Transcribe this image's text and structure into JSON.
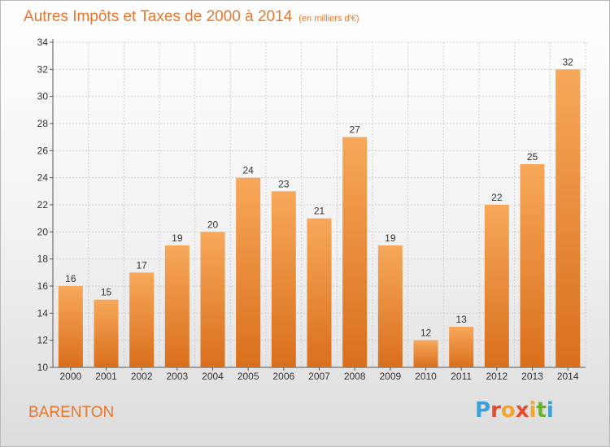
{
  "chart_data": {
    "type": "bar",
    "title": "Autres Impôts et Taxes de 2000 à 2014",
    "unit_note": "(en milliers d'€)",
    "categories": [
      "2000",
      "2001",
      "2002",
      "2003",
      "2004",
      "2005",
      "2006",
      "2007",
      "2008",
      "2009",
      "2010",
      "2011",
      "2012",
      "2013",
      "2014"
    ],
    "values": [
      16,
      15,
      17,
      19,
      20,
      24,
      23,
      21,
      27,
      19,
      12,
      13,
      22,
      25,
      32
    ],
    "ylim": [
      10,
      34
    ],
    "yticks": [
      10,
      12,
      14,
      16,
      18,
      20,
      22,
      24,
      26,
      28,
      30,
      32,
      34
    ],
    "xlabel": "",
    "ylabel": "",
    "grid": true,
    "bar_color_top": "#f7a85a",
    "bar_color_bottom": "#d96f1c"
  },
  "commune": "BARENTON",
  "logo": {
    "letters": [
      "P",
      "r",
      "o",
      "x",
      "i",
      "t",
      "i"
    ],
    "colors": [
      "#3aa0d8",
      "#e9492b",
      "#f2a52a",
      "#e9492b",
      "#f2a52a",
      "#6bb32e",
      "#3aa0d8"
    ]
  },
  "colors": {
    "title": "#e8762c",
    "grid": "#cfcfcf"
  }
}
